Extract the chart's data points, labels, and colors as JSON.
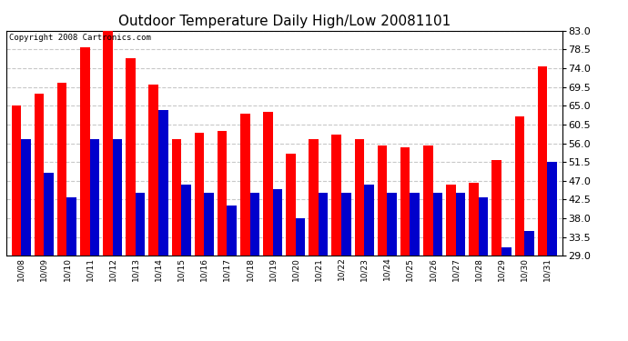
{
  "title": "Outdoor Temperature Daily High/Low 20081101",
  "copyright": "Copyright 2008 Cartronics.com",
  "dates": [
    "10/08",
    "10/09",
    "10/10",
    "10/11",
    "10/12",
    "10/13",
    "10/14",
    "10/15",
    "10/16",
    "10/17",
    "10/18",
    "10/19",
    "10/20",
    "10/21",
    "10/22",
    "10/23",
    "10/24",
    "10/25",
    "10/26",
    "10/27",
    "10/28",
    "10/29",
    "10/30",
    "10/31"
  ],
  "highs": [
    65.0,
    68.0,
    70.5,
    79.0,
    83.0,
    76.5,
    70.0,
    57.0,
    58.5,
    59.0,
    63.0,
    63.5,
    53.5,
    57.0,
    58.0,
    57.0,
    55.5,
    55.0,
    55.5,
    46.0,
    46.5,
    52.0,
    62.5,
    74.5
  ],
  "lows": [
    57.0,
    49.0,
    43.0,
    57.0,
    57.0,
    44.0,
    64.0,
    46.0,
    44.0,
    41.0,
    44.0,
    45.0,
    38.0,
    44.0,
    44.0,
    46.0,
    44.0,
    44.0,
    44.0,
    44.0,
    43.0,
    31.0,
    35.0,
    51.5
  ],
  "high_color": "#ff0000",
  "low_color": "#0000cc",
  "bg_color": "#ffffff",
  "grid_color": "#c8c8c8",
  "ymin": 29.0,
  "ymax": 83.0,
  "yticks": [
    29.0,
    33.5,
    38.0,
    42.5,
    47.0,
    51.5,
    56.0,
    60.5,
    65.0,
    69.5,
    74.0,
    78.5,
    83.0
  ],
  "title_fontsize": 11,
  "copyright_fontsize": 6.5,
  "ytick_fontsize": 8,
  "xtick_fontsize": 6.5
}
